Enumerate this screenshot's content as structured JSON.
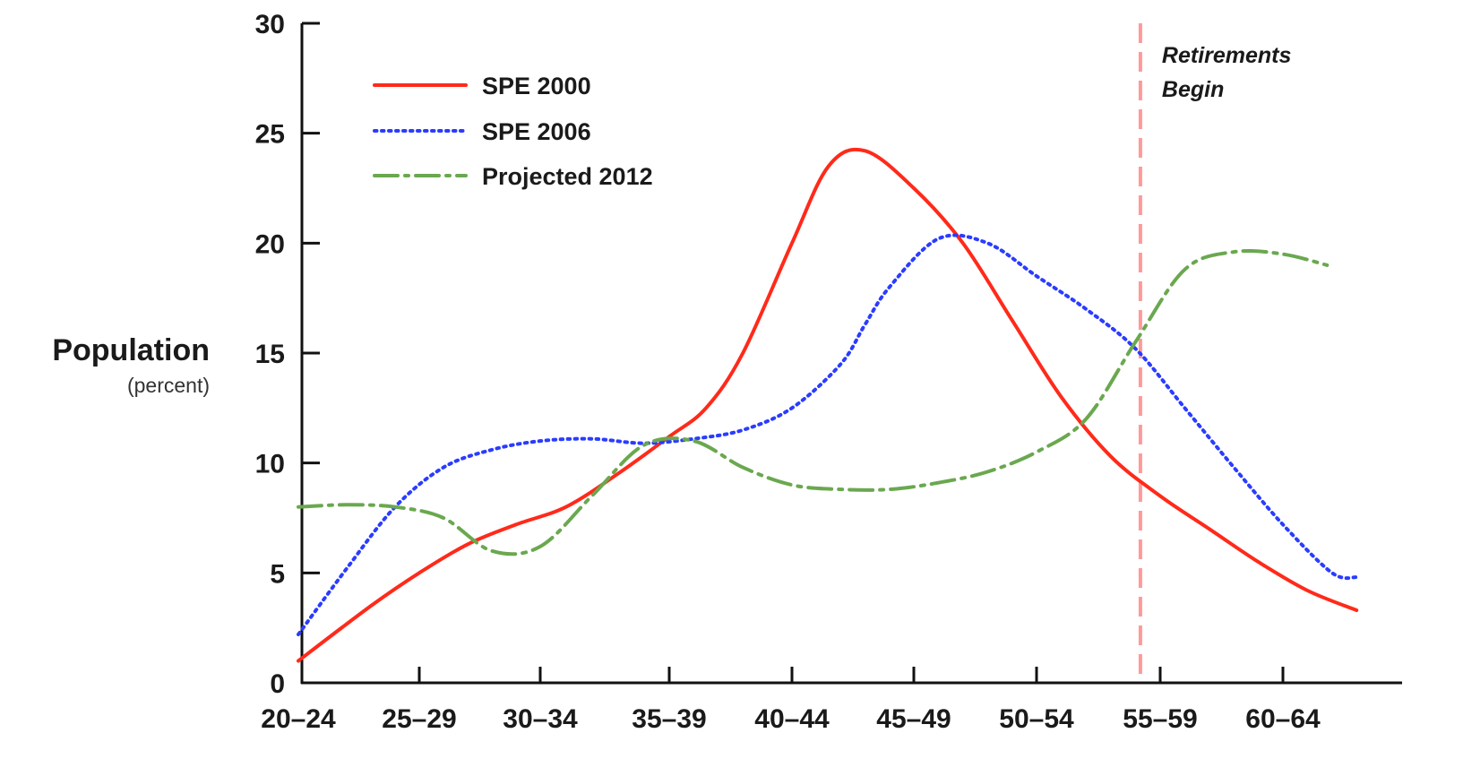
{
  "chart_data": {
    "type": "line",
    "ylabel": "Population",
    "yunit": "(percent)",
    "categories": [
      "20–24",
      "25–29",
      "30–34",
      "35–39",
      "40–44",
      "45–49",
      "50–54",
      "55–59",
      "60–64"
    ],
    "yticks": [
      "0",
      "5",
      "10",
      "15",
      "20",
      "25",
      "30"
    ],
    "ylim": [
      0,
      30
    ],
    "legend_position": "top-left",
    "series": [
      {
        "name": "SPE 2000",
        "color": "#ff2a1a",
        "style": "solid",
        "x": [
          22,
          25,
          27,
          29,
          31,
          33,
          35,
          37,
          38.5,
          40,
          42,
          43.5,
          45,
          47,
          49,
          51,
          53,
          55,
          57,
          59,
          61,
          63,
          65
        ],
        "y": [
          1.0,
          3.5,
          5.0,
          6.3,
          7.2,
          8.0,
          9.5,
          11.2,
          12.5,
          15.0,
          20.0,
          23.5,
          24.2,
          22.5,
          20.0,
          16.5,
          13.0,
          10.3,
          8.5,
          7.0,
          5.5,
          4.2,
          3.3
        ]
      },
      {
        "name": "SPE 2006",
        "color": "#2a3cff",
        "style": "dotted",
        "x": [
          22,
          24,
          26,
          28,
          30,
          32,
          34,
          36,
          38,
          40,
          42,
          44,
          45,
          46,
          48,
          50,
          52,
          54,
          56,
          58,
          60,
          62,
          64,
          65
        ],
        "y": [
          2.2,
          5.2,
          8.0,
          9.8,
          10.6,
          11.0,
          11.1,
          10.9,
          11.1,
          11.5,
          12.5,
          14.5,
          16.3,
          18.0,
          20.2,
          20.0,
          18.5,
          17.0,
          15.2,
          12.5,
          9.8,
          7.2,
          5.0,
          4.8
        ]
      },
      {
        "name": "Projected 2012",
        "color": "#6aa84f",
        "style": "dashdot",
        "x": [
          22,
          24,
          26,
          28,
          30,
          32,
          34,
          36,
          38,
          40,
          42,
          44,
          46,
          48,
          50,
          52,
          54,
          56,
          58,
          60,
          62,
          63.8
        ],
        "y": [
          8.0,
          8.1,
          8.0,
          7.5,
          6.0,
          6.2,
          8.5,
          10.8,
          11.0,
          9.8,
          9.0,
          8.8,
          8.8,
          9.1,
          9.6,
          10.5,
          12.0,
          15.5,
          18.8,
          19.6,
          19.5,
          19.0
        ]
      }
    ],
    "annotations": [
      {
        "type": "vline",
        "x": 56.2,
        "color": "#ff9a9a",
        "style": "dashed",
        "label": [
          "Retirements",
          "Begin"
        ]
      }
    ]
  }
}
